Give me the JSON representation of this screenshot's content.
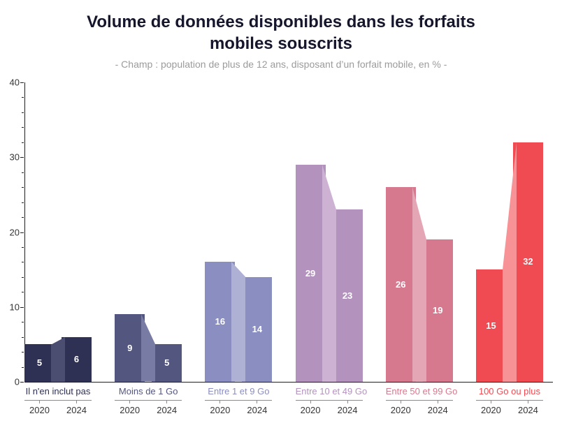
{
  "header": {
    "title_line1": "Volume de données disponibles dans les forfaits",
    "title_line2": "mobiles souscrits",
    "subtitle": "- Champ : population de plus de 12 ans, disposant d’un forfait mobile, en % -"
  },
  "chart_data": {
    "type": "bar",
    "title": "Volume de données disponibles dans les forfaits mobiles souscrits",
    "subtitle": "- Champ : population de plus de 12 ans, disposant d’un forfait mobile, en % -",
    "unit": "%",
    "categories": [
      "Il n'en inclut pas",
      "Moins de 1 Go",
      "Entre 1 et 9 Go",
      "Entre 10 et 49 Go",
      "Entre 50 et 99 Go",
      "100 Go ou plus"
    ],
    "series": [
      {
        "name": "2020",
        "values": [
          5,
          9,
          16,
          29,
          26,
          15
        ]
      },
      {
        "name": "2024",
        "values": [
          6,
          5,
          14,
          23,
          19,
          32
        ]
      }
    ],
    "bar_colors": [
      "#2e3054",
      "#53567f",
      "#8b8ec0",
      "#b392be",
      "#d7798e",
      "#f04a52"
    ],
    "connector_colors": [
      "#4b4e70",
      "#787ba3",
      "#aeb0d4",
      "#cdb2d4",
      "#e4a6b4",
      "#f79296"
    ],
    "category_label_colors": [
      "#2e3054",
      "#53567f",
      "#8b8ec0",
      "#b392be",
      "#d7798e",
      "#f04a52"
    ],
    "value_label_color": "#ffffff",
    "axis_color": "#1e1e1e",
    "xlabel": "",
    "ylabel": "",
    "ylim": [
      0,
      40
    ],
    "yticks": [
      0,
      10,
      20,
      30,
      40
    ],
    "minor_tick_step": 2,
    "grid": false,
    "legend_position": "none"
  }
}
